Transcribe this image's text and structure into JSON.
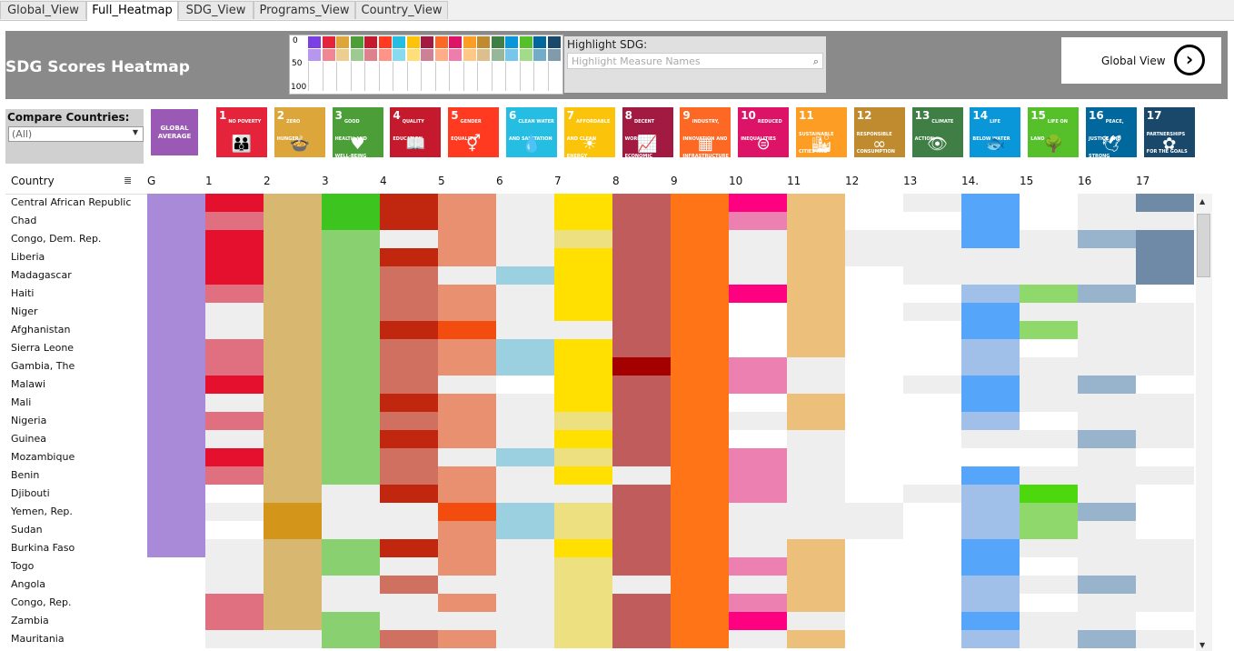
{
  "tabs": [
    "Global_View",
    "Full_Heatmap",
    "SDG_View",
    "Programs_View",
    "Country_View"
  ],
  "active_tab": "Full_Heatmap",
  "title": "SDG Scores Heatmap",
  "legend_ticks": [
    "0",
    "50",
    "100"
  ],
  "legend_colors": [
    "#7b3fe4",
    "#e5243b",
    "#dda63a",
    "#4c9f38",
    "#c5192d",
    "#ff3a21",
    "#26bde2",
    "#fcc30b",
    "#a21942",
    "#fd6925",
    "#dd1367",
    "#fd9d24",
    "#bf8b2e",
    "#3f7e44",
    "#0a97d9",
    "#56c02b",
    "#00689d",
    "#19486a"
  ],
  "highlight": {
    "label": "Highlight SDG:",
    "placeholder": "Highlight Measure Names"
  },
  "global_view": {
    "label": "Global View"
  },
  "compare": {
    "label": "Compare Countries:",
    "value": "(All)"
  },
  "global_average_tile": "GLOBAL AVERAGE",
  "sdg_icons": [
    {
      "n": "1",
      "text": "No Poverty",
      "color": "#e5243b",
      "glyph": "👪"
    },
    {
      "n": "2",
      "text": "Zero Hunger",
      "color": "#dda63a",
      "glyph": "🍲"
    },
    {
      "n": "3",
      "text": "Good Health and Well-Being",
      "color": "#4c9f38",
      "glyph": "♥"
    },
    {
      "n": "4",
      "text": "Quality Education",
      "color": "#c5192d",
      "glyph": "📖"
    },
    {
      "n": "5",
      "text": "Gender Equality",
      "color": "#ff3a21",
      "glyph": "⚥"
    },
    {
      "n": "6",
      "text": "Clean Water and Sanitation",
      "color": "#26bde2",
      "glyph": "💧"
    },
    {
      "n": "7",
      "text": "Affordable and Clean Energy",
      "color": "#fcc30b",
      "glyph": "☀"
    },
    {
      "n": "8",
      "text": "Decent Work and Economic Growth",
      "color": "#a21942",
      "glyph": "📈"
    },
    {
      "n": "9",
      "text": "Industry, Innovation and Infrastructure",
      "color": "#fd6925",
      "glyph": "▦"
    },
    {
      "n": "10",
      "text": "Reduced Inequalities",
      "color": "#dd1367",
      "glyph": "⊜"
    },
    {
      "n": "11",
      "text": "Sustainable Cities and Communities",
      "color": "#fd9d24",
      "glyph": "🏙"
    },
    {
      "n": "12",
      "text": "Responsible Consumption and Production",
      "color": "#bf8b2e",
      "glyph": "∞"
    },
    {
      "n": "13",
      "text": "Climate Action",
      "color": "#3f7e44",
      "glyph": "👁"
    },
    {
      "n": "14",
      "text": "Life Below Water",
      "color": "#0a97d9",
      "glyph": "🐟"
    },
    {
      "n": "15",
      "text": "Life on Land",
      "color": "#56c02b",
      "glyph": "🌳"
    },
    {
      "n": "16",
      "text": "Peace, Justice and Strong Institutions",
      "color": "#00689d",
      "glyph": "🕊"
    },
    {
      "n": "17",
      "text": "Partnerships for the Goals",
      "color": "#19486a",
      "glyph": "✿"
    }
  ],
  "columns": {
    "country_label": "Country",
    "headers": [
      "G",
      "1",
      "2",
      "3",
      "4",
      "5",
      "6",
      "7",
      "8",
      "9",
      "10",
      "11",
      "12",
      "13",
      "14.",
      "15",
      "16",
      "17"
    ]
  },
  "heatmap": {
    "palette": {
      "1": [
        "#eeeeee",
        "#e07080",
        "#e5102e"
      ],
      "2": [
        "#eeeeee",
        "#d8b870",
        "#d4961a"
      ],
      "3": [
        "#eeeeee",
        "#88d070",
        "#3ec41f"
      ],
      "4": [
        "#eeeeee",
        "#cf7060",
        "#c1260e"
      ],
      "5": [
        "#eeeeee",
        "#e89070",
        "#f24d0e"
      ],
      "6": [
        "#eeeeee",
        "#9ad0e0",
        "#4ab8d8"
      ],
      "7": [
        "#eeeeee",
        "#ede080",
        "#ffe000"
      ],
      "8": [
        "#eeeeee",
        "#c05c5c",
        "#a40000"
      ],
      "9": [
        "#eeeeee",
        "#ff7416",
        "#ff7416"
      ],
      "10": [
        "#eeeeee",
        "#ec80b0",
        "#ff0080"
      ],
      "11": [
        "#eeeeee",
        "#ecc07a",
        "#ecc07a"
      ],
      "12": [
        "#eeeeee",
        "#eeeeee",
        "#eeeeee"
      ],
      "13": [
        "#eeeeee",
        "#eeeeee",
        "#eeeeee"
      ],
      "14": [
        "#eeeeee",
        "#a0c0ea",
        "#55a5fa"
      ],
      "15": [
        "#eeeeee",
        "#8fd86c",
        "#4cd80c"
      ],
      "16": [
        "#eeeeee",
        "#98b4cc",
        "#6a98c2"
      ],
      "17": [
        "#eeeeee",
        "#6f8aa6",
        "#6f8aa6"
      ]
    },
    "rows": [
      {
        "country": "Central African Republic",
        "scores": [
          2,
          1,
          2,
          2,
          1,
          0,
          2,
          1,
          2,
          2,
          1,
          3,
          0,
          2,
          3,
          0,
          2
        ]
      },
      {
        "country": "Chad",
        "scores": [
          1,
          1,
          2,
          2,
          1,
          0,
          2,
          1,
          2,
          1,
          1,
          3,
          3,
          2,
          3,
          0,
          0
        ]
      },
      {
        "country": "Congo, Dem. Rep.",
        "scores": [
          2,
          1,
          1,
          0,
          1,
          0,
          1,
          1,
          2,
          0,
          1,
          0,
          0,
          2,
          0,
          1,
          2
        ]
      },
      {
        "country": "Liberia",
        "scores": [
          2,
          1,
          1,
          2,
          1,
          0,
          2,
          1,
          2,
          0,
          1,
          0,
          0,
          0,
          0,
          0,
          2
        ]
      },
      {
        "country": "Madagascar",
        "scores": [
          2,
          1,
          1,
          1,
          0,
          1,
          2,
          1,
          2,
          0,
          1,
          3,
          0,
          0,
          0,
          0,
          2
        ]
      },
      {
        "country": "Haiti",
        "scores": [
          1,
          1,
          1,
          1,
          1,
          0,
          2,
          1,
          2,
          2,
          1,
          3,
          3,
          1,
          1,
          1,
          3
        ]
      },
      {
        "country": "Niger",
        "scores": [
          0,
          1,
          1,
          1,
          1,
          0,
          2,
          1,
          2,
          3,
          1,
          3,
          0,
          2,
          0,
          0,
          0
        ]
      },
      {
        "country": "Afghanistan",
        "scores": [
          0,
          1,
          1,
          2,
          2,
          0,
          0,
          1,
          2,
          3,
          1,
          3,
          3,
          2,
          1,
          0,
          0
        ]
      },
      {
        "country": "Sierra Leone",
        "scores": [
          1,
          1,
          1,
          1,
          1,
          1,
          2,
          1,
          2,
          3,
          1,
          3,
          3,
          1,
          3,
          0,
          0
        ]
      },
      {
        "country": "Gambia, The",
        "scores": [
          1,
          1,
          1,
          1,
          1,
          1,
          2,
          2,
          2,
          1,
          0,
          3,
          3,
          1,
          0,
          0,
          0
        ]
      },
      {
        "country": "Malawi",
        "scores": [
          2,
          1,
          1,
          1,
          0,
          3,
          2,
          1,
          2,
          1,
          0,
          3,
          0,
          2,
          0,
          1,
          3
        ]
      },
      {
        "country": "Mali",
        "scores": [
          0,
          1,
          1,
          2,
          1,
          0,
          2,
          1,
          2,
          3,
          1,
          3,
          3,
          2,
          0,
          0,
          0
        ]
      },
      {
        "country": "Nigeria",
        "scores": [
          1,
          1,
          1,
          1,
          1,
          0,
          1,
          1,
          2,
          0,
          1,
          3,
          3,
          1,
          3,
          0,
          0
        ]
      },
      {
        "country": "Guinea",
        "scores": [
          0,
          1,
          1,
          2,
          1,
          0,
          2,
          1,
          2,
          3,
          0,
          3,
          3,
          0,
          0,
          1,
          0
        ]
      },
      {
        "country": "Mozambique",
        "scores": [
          2,
          1,
          1,
          1,
          0,
          1,
          1,
          1,
          2,
          1,
          0,
          3,
          3,
          3,
          3,
          0,
          3
        ]
      },
      {
        "country": "Benin",
        "scores": [
          1,
          1,
          1,
          1,
          1,
          0,
          2,
          0,
          2,
          1,
          0,
          3,
          3,
          2,
          0,
          0,
          0
        ]
      },
      {
        "country": "Djibouti",
        "scores": [
          3,
          1,
          0,
          2,
          1,
          0,
          0,
          1,
          2,
          1,
          0,
          3,
          0,
          1,
          2,
          0,
          3
        ]
      },
      {
        "country": "Yemen, Rep.",
        "scores": [
          0,
          2,
          0,
          0,
          2,
          1,
          1,
          1,
          2,
          0,
          0,
          0,
          3,
          1,
          1,
          1,
          3
        ]
      },
      {
        "country": "Sudan",
        "scores": [
          3,
          2,
          0,
          0,
          1,
          1,
          1,
          1,
          2,
          0,
          0,
          0,
          3,
          1,
          1,
          0,
          3
        ]
      },
      {
        "country": "Burkina Faso",
        "scores": [
          0,
          1,
          1,
          2,
          1,
          0,
          2,
          1,
          2,
          0,
          1,
          3,
          3,
          2,
          0,
          0,
          0
        ]
      },
      {
        "country": "Togo",
        "scores": [
          0,
          1,
          1,
          0,
          1,
          0,
          1,
          1,
          2,
          1,
          1,
          3,
          3,
          2,
          3,
          0,
          0
        ]
      },
      {
        "country": "Angola",
        "scores": [
          0,
          1,
          0,
          1,
          0,
          0,
          1,
          0,
          2,
          0,
          1,
          3,
          3,
          1,
          0,
          1,
          0
        ]
      },
      {
        "country": "Congo, Rep.",
        "scores": [
          1,
          1,
          0,
          0,
          1,
          0,
          1,
          1,
          2,
          1,
          1,
          3,
          3,
          1,
          3,
          0,
          0
        ]
      },
      {
        "country": "Zambia",
        "scores": [
          1,
          1,
          1,
          0,
          0,
          0,
          1,
          1,
          2,
          2,
          0,
          3,
          3,
          2,
          0,
          0,
          3
        ]
      },
      {
        "country": "Mauritania",
        "scores": [
          0,
          0,
          1,
          1,
          1,
          0,
          1,
          1,
          2,
          0,
          1,
          3,
          3,
          1,
          0,
          1,
          0
        ]
      }
    ]
  }
}
